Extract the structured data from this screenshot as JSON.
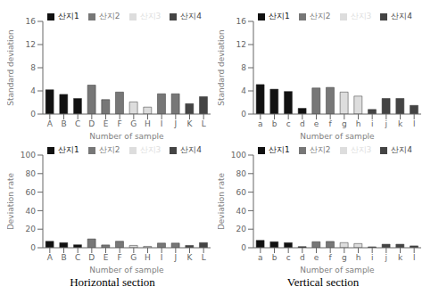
{
  "chart_data": [
    {
      "type": "bar",
      "categories": [
        "A",
        "B",
        "C",
        "D",
        "E",
        "F",
        "G",
        "H",
        "I",
        "J",
        "K",
        "L"
      ],
      "xlabel": "Number of sample",
      "ylabel": "Standard deviation",
      "ylim": [
        0,
        16
      ],
      "yticks": [
        0,
        4,
        8,
        12,
        16
      ],
      "stacked": true,
      "legend": "upper right",
      "series": [
        {
          "name": "산지1",
          "color": "#111111",
          "values": [
            4.2,
            3.4,
            2.7,
            null,
            null,
            null,
            null,
            null,
            null,
            null,
            null,
            null
          ]
        },
        {
          "name": "산지2",
          "color": "#777777",
          "values": [
            null,
            null,
            null,
            5.0,
            2.5,
            3.8,
            null,
            null,
            3.5,
            3.5,
            null,
            null
          ]
        },
        {
          "name": "산지3",
          "color": "#dddddd",
          "values": [
            null,
            null,
            null,
            null,
            null,
            null,
            2.1,
            1.2,
            null,
            null,
            null,
            null
          ]
        },
        {
          "name": "산지4",
          "color": "#444444",
          "values": [
            null,
            null,
            null,
            null,
            null,
            null,
            null,
            null,
            null,
            null,
            1.8,
            3.0
          ]
        }
      ]
    },
    {
      "type": "bar",
      "categories": [
        "a",
        "b",
        "c",
        "d",
        "e",
        "f",
        "g",
        "h",
        "i",
        "j",
        "k",
        "l"
      ],
      "xlabel": "Number of sample",
      "ylabel": "Standard deviation",
      "ylim": [
        0,
        16
      ],
      "yticks": [
        0,
        4,
        8,
        12,
        16
      ],
      "stacked": true,
      "legend": "upper right",
      "series": [
        {
          "name": "산지1",
          "color": "#111111",
          "values": [
            5.1,
            4.3,
            3.9,
            1.0,
            null,
            null,
            null,
            null,
            null,
            null,
            null,
            null
          ]
        },
        {
          "name": "산지2",
          "color": "#777777",
          "values": [
            null,
            null,
            null,
            null,
            4.5,
            4.6,
            null,
            null,
            null,
            null,
            null,
            null
          ]
        },
        {
          "name": "산지3",
          "color": "#dddddd",
          "values": [
            null,
            null,
            null,
            null,
            null,
            null,
            3.8,
            3.1,
            null,
            null,
            null,
            null
          ]
        },
        {
          "name": "산지4",
          "color": "#444444",
          "values": [
            null,
            null,
            null,
            null,
            null,
            null,
            null,
            null,
            0.8,
            2.7,
            2.7,
            1.5
          ]
        }
      ]
    },
    {
      "type": "bar",
      "title": "Horizontal section",
      "categories": [
        "A",
        "B",
        "C",
        "D",
        "E",
        "F",
        "G",
        "H",
        "I",
        "J",
        "K",
        "L"
      ],
      "xlabel": "Number of sample",
      "ylabel": "Deviation rate",
      "ylim": [
        0,
        100
      ],
      "yticks": [
        0,
        20,
        40,
        60,
        80,
        100
      ],
      "stacked": true,
      "legend": "upper right",
      "series": [
        {
          "name": "산지1",
          "color": "#111111",
          "values": [
            7.0,
            5.5,
            3.2,
            null,
            null,
            null,
            null,
            null,
            null,
            null,
            null,
            null
          ]
        },
        {
          "name": "산지2",
          "color": "#777777",
          "values": [
            null,
            null,
            null,
            9.5,
            3.0,
            7.0,
            null,
            null,
            5.0,
            5.0,
            null,
            null
          ]
        },
        {
          "name": "산지3",
          "color": "#dddddd",
          "values": [
            null,
            null,
            null,
            null,
            null,
            null,
            2.5,
            1.5,
            null,
            null,
            null,
            null
          ]
        },
        {
          "name": "산지4",
          "color": "#444444",
          "values": [
            null,
            null,
            null,
            null,
            null,
            null,
            null,
            null,
            null,
            null,
            2.5,
            5.5
          ]
        }
      ]
    },
    {
      "type": "bar",
      "title": "Vertical section",
      "categories": [
        "a",
        "b",
        "c",
        "d",
        "e",
        "f",
        "g",
        "h",
        "i",
        "j",
        "k",
        "l"
      ],
      "xlabel": "Number of sample",
      "ylabel": "Deviation rate",
      "ylim": [
        0,
        100
      ],
      "yticks": [
        0,
        20,
        40,
        60,
        80,
        100
      ],
      "stacked": true,
      "legend": "upper right",
      "series": [
        {
          "name": "산지1",
          "color": "#111111",
          "values": [
            8.0,
            6.5,
            5.5,
            1.2,
            null,
            null,
            null,
            null,
            null,
            null,
            null,
            null
          ]
        },
        {
          "name": "산지2",
          "color": "#777777",
          "values": [
            null,
            null,
            null,
            null,
            6.5,
            6.8,
            null,
            null,
            null,
            null,
            null,
            null
          ]
        },
        {
          "name": "산지3",
          "color": "#dddddd",
          "values": [
            null,
            null,
            null,
            null,
            null,
            null,
            5.5,
            4.5,
            null,
            null,
            null,
            null
          ]
        },
        {
          "name": "산지4",
          "color": "#444444",
          "values": [
            null,
            null,
            null,
            null,
            null,
            null,
            null,
            null,
            1.0,
            3.8,
            3.8,
            2.0
          ]
        }
      ]
    }
  ]
}
